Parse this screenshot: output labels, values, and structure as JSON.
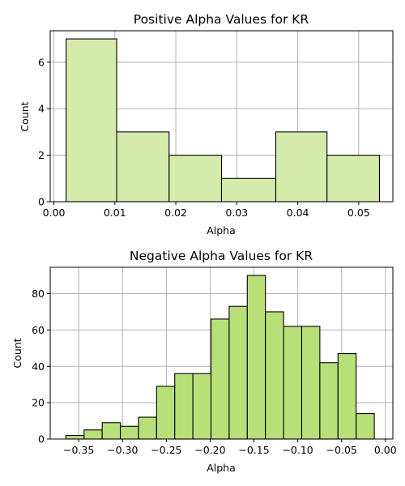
{
  "colors": {
    "positive_fill": "#d4ebab",
    "negative_fill": "#b8df78",
    "bar_edge": "#000000",
    "grid": "#b0b0b0"
  },
  "chart_data": [
    {
      "type": "bar",
      "title": "Positive Alpha Values for KR",
      "xlabel": "Alpha",
      "ylabel": "Count",
      "xlim": [
        -0.0006,
        0.0556
      ],
      "ylim": [
        0,
        7.35
      ],
      "x_ticks": [
        0.0,
        0.01,
        0.02,
        0.03,
        0.04,
        0.05
      ],
      "x_tick_labels": [
        "0.00",
        "0.01",
        "0.02",
        "0.03",
        "0.04",
        "0.05"
      ],
      "y_ticks": [
        0,
        2,
        4,
        6
      ],
      "y_tick_labels": [
        "0",
        "2",
        "4",
        "6"
      ],
      "grid": true,
      "bins": [
        {
          "x0": 0.002,
          "x1": 0.0103,
          "count": 7
        },
        {
          "x0": 0.0103,
          "x1": 0.0189,
          "count": 3
        },
        {
          "x0": 0.0189,
          "x1": 0.0275,
          "count": 2
        },
        {
          "x0": 0.0275,
          "x1": 0.0364,
          "count": 1
        },
        {
          "x0": 0.0364,
          "x1": 0.0448,
          "count": 3
        },
        {
          "x0": 0.0448,
          "x1": 0.0534,
          "count": 2
        }
      ]
    },
    {
      "type": "bar",
      "title": "Negative Alpha Values for KR",
      "xlabel": "Alpha",
      "ylabel": "Count",
      "xlim": [
        -0.3825,
        0.0085
      ],
      "ylim": [
        0,
        94.5
      ],
      "x_ticks": [
        -0.35,
        -0.3,
        -0.25,
        -0.2,
        -0.15,
        -0.1,
        -0.05,
        0.0
      ],
      "x_tick_labels": [
        "−0.35",
        "−0.30",
        "−0.25",
        "−0.20",
        "−0.15",
        "−0.10",
        "−0.05",
        "0.00"
      ],
      "y_ticks": [
        0,
        20,
        40,
        60,
        80
      ],
      "y_tick_labels": [
        "0",
        "20",
        "40",
        "60",
        "80"
      ],
      "grid": true,
      "bins": [
        {
          "x0": -0.3646,
          "x1": -0.3439,
          "count": 2
        },
        {
          "x0": -0.3439,
          "x1": -0.3232,
          "count": 5
        },
        {
          "x0": -0.3232,
          "x1": -0.3025,
          "count": 9
        },
        {
          "x0": -0.3025,
          "x1": -0.2818,
          "count": 7
        },
        {
          "x0": -0.2818,
          "x1": -0.2611,
          "count": 12
        },
        {
          "x0": -0.2611,
          "x1": -0.2404,
          "count": 29
        },
        {
          "x0": -0.2404,
          "x1": -0.2197,
          "count": 36
        },
        {
          "x0": -0.2197,
          "x1": -0.199,
          "count": 36
        },
        {
          "x0": -0.199,
          "x1": -0.1783,
          "count": 66
        },
        {
          "x0": -0.1783,
          "x1": -0.1576,
          "count": 73
        },
        {
          "x0": -0.1576,
          "x1": -0.1369,
          "count": 90
        },
        {
          "x0": -0.1369,
          "x1": -0.1162,
          "count": 70
        },
        {
          "x0": -0.1162,
          "x1": -0.0955,
          "count": 62
        },
        {
          "x0": -0.0955,
          "x1": -0.0748,
          "count": 62
        },
        {
          "x0": -0.0748,
          "x1": -0.0541,
          "count": 42
        },
        {
          "x0": -0.0541,
          "x1": -0.0334,
          "count": 47
        },
        {
          "x0": -0.0334,
          "x1": -0.0127,
          "count": 14
        }
      ]
    }
  ]
}
